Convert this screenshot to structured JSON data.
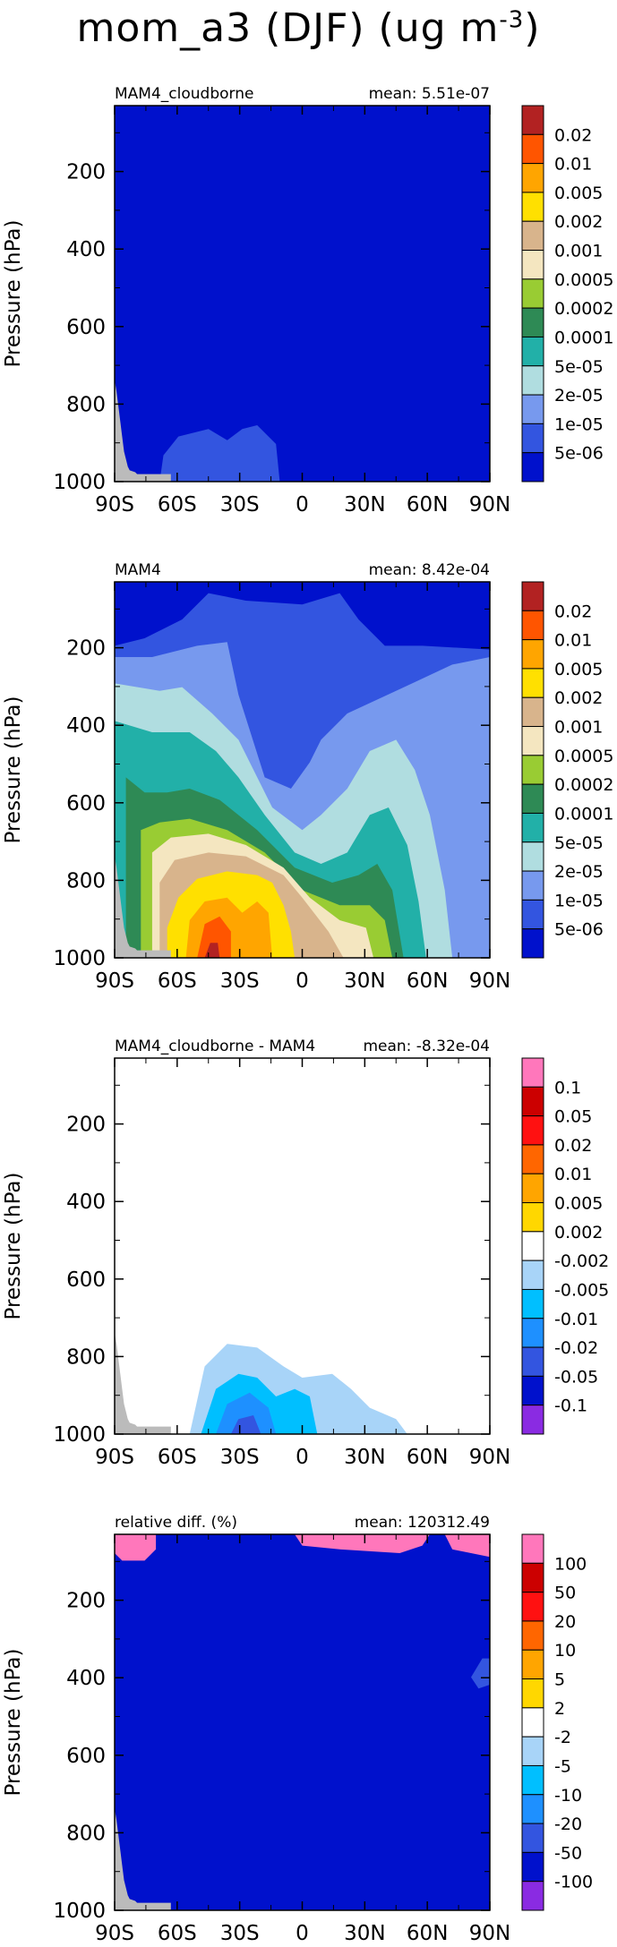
{
  "figure": {
    "title_main": "mom_a3 (DJF) (ug m",
    "title_exp": "-3",
    "title_end": ")"
  },
  "chart_data": [
    {
      "type": "contour",
      "panel_label": "MAM4_cloudborne",
      "stat_text": "mean: 5.51e-07",
      "ylabel": "Pressure (hPa)",
      "xlabel": "",
      "x_ticks": [
        "90S",
        "60S",
        "30S",
        "0",
        "30N",
        "60N",
        "90N"
      ],
      "x_range": [
        -90,
        90
      ],
      "y_ticks": [
        "200",
        "400",
        "600",
        "800",
        "1000"
      ],
      "y_tick_values": [
        200,
        400,
        600,
        800,
        1000
      ],
      "y_range": [
        1000,
        30
      ],
      "y_reversed": true,
      "levels": [
        "5e-06",
        "1e-05",
        "2e-05",
        "5e-05",
        "0.0001",
        "0.0002",
        "0.0005",
        "0.001",
        "0.002",
        "0.005",
        "0.01",
        "0.02"
      ],
      "colors": [
        "#0011cc",
        "#3355e0",
        "#7799ee",
        "#b0dde0",
        "#22b0a8",
        "#2e8a55",
        "#99cc33",
        "#f4e6c0",
        "#d8b48c",
        "#ffe000",
        "#ffa500",
        "#ff5500",
        "#b22222"
      ],
      "background_color": "#0011cc",
      "terrain_color": "#bbbbbb"
    },
    {
      "type": "contour",
      "panel_label": "MAM4",
      "stat_text": "mean: 8.42e-04",
      "ylabel": "Pressure (hPa)",
      "xlabel": "",
      "x_ticks": [
        "90S",
        "60S",
        "30S",
        "0",
        "30N",
        "60N",
        "90N"
      ],
      "x_range": [
        -90,
        90
      ],
      "y_ticks": [
        "200",
        "400",
        "600",
        "800",
        "1000"
      ],
      "y_tick_values": [
        200,
        400,
        600,
        800,
        1000
      ],
      "y_range": [
        1000,
        30
      ],
      "y_reversed": true,
      "levels": [
        "5e-06",
        "1e-05",
        "2e-05",
        "5e-05",
        "0.0001",
        "0.0002",
        "0.0005",
        "0.001",
        "0.002",
        "0.005",
        "0.01",
        "0.02"
      ],
      "colors": [
        "#0011cc",
        "#3355e0",
        "#7799ee",
        "#b0dde0",
        "#22b0a8",
        "#2e8a55",
        "#99cc33",
        "#f4e6c0",
        "#d8b48c",
        "#ffe000",
        "#ffa500",
        "#ff5500",
        "#b22222"
      ],
      "background_color": "#0011cc",
      "terrain_color": "#bbbbbb"
    },
    {
      "type": "contour",
      "panel_label": "MAM4_cloudborne - MAM4",
      "stat_text": "mean: -8.32e-04",
      "ylabel": "Pressure (hPa)",
      "xlabel": "",
      "x_ticks": [
        "90S",
        "60S",
        "30S",
        "0",
        "30N",
        "60N",
        "90N"
      ],
      "x_range": [
        -90,
        90
      ],
      "y_ticks": [
        "200",
        "400",
        "600",
        "800",
        "1000"
      ],
      "y_tick_values": [
        200,
        400,
        600,
        800,
        1000
      ],
      "y_range": [
        1000,
        30
      ],
      "y_reversed": true,
      "levels": [
        "-0.1",
        "-0.05",
        "-0.02",
        "-0.01",
        "-0.005",
        "-0.002",
        "0.002",
        "0.005",
        "0.01",
        "0.02",
        "0.05",
        "0.1"
      ],
      "colors": [
        "#8a2be2",
        "#0011cc",
        "#3355e0",
        "#1e90ff",
        "#00bfff",
        "#a8d4f8",
        "#ffffff",
        "#ffd700",
        "#ffa500",
        "#ff6600",
        "#ff1111",
        "#cc0000",
        "#ff77bb"
      ],
      "background_color": "#ffffff",
      "terrain_color": "#bbbbbb"
    },
    {
      "type": "contour",
      "panel_label": "relative diff. (%)",
      "stat_text": "mean: 120312.49",
      "ylabel": "Pressure (hPa)",
      "xlabel": "",
      "x_ticks": [
        "90S",
        "60S",
        "30S",
        "0",
        "30N",
        "60N",
        "90N"
      ],
      "x_range": [
        -90,
        90
      ],
      "y_ticks": [
        "200",
        "400",
        "600",
        "800",
        "1000"
      ],
      "y_tick_values": [
        200,
        400,
        600,
        800,
        1000
      ],
      "y_range": [
        1000,
        30
      ],
      "y_reversed": true,
      "levels": [
        "-100",
        "-50",
        "-20",
        "-10",
        "-5",
        "-2",
        "2",
        "5",
        "10",
        "20",
        "50",
        "100"
      ],
      "colors": [
        "#8a2be2",
        "#0011cc",
        "#3355e0",
        "#1e90ff",
        "#00bfff",
        "#a8d4f8",
        "#ffffff",
        "#ffd700",
        "#ffa500",
        "#ff6600",
        "#ff1111",
        "#cc0000",
        "#ff77bb"
      ],
      "background_color": "#0011cc",
      "terrain_color": "#bbbbbb"
    }
  ]
}
